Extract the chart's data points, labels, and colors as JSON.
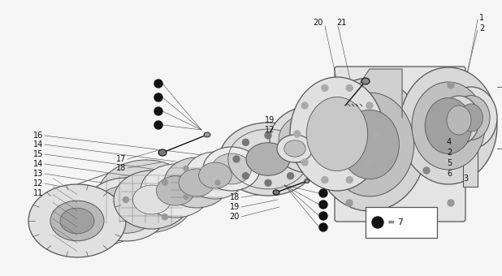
{
  "bg_color": "#f5f5f5",
  "line_color": "#555555",
  "dark_color": "#111111",
  "mid_color": "#888888",
  "fill_light": "#e8e8e8",
  "fill_mid": "#d0d0d0",
  "fill_dark": "#b8b8b8",
  "lw_main": 0.8,
  "lw_thin": 0.5,
  "lw_leader": 0.5,
  "fig_w": 6.18,
  "fig_h": 3.4,
  "dpi": 100
}
